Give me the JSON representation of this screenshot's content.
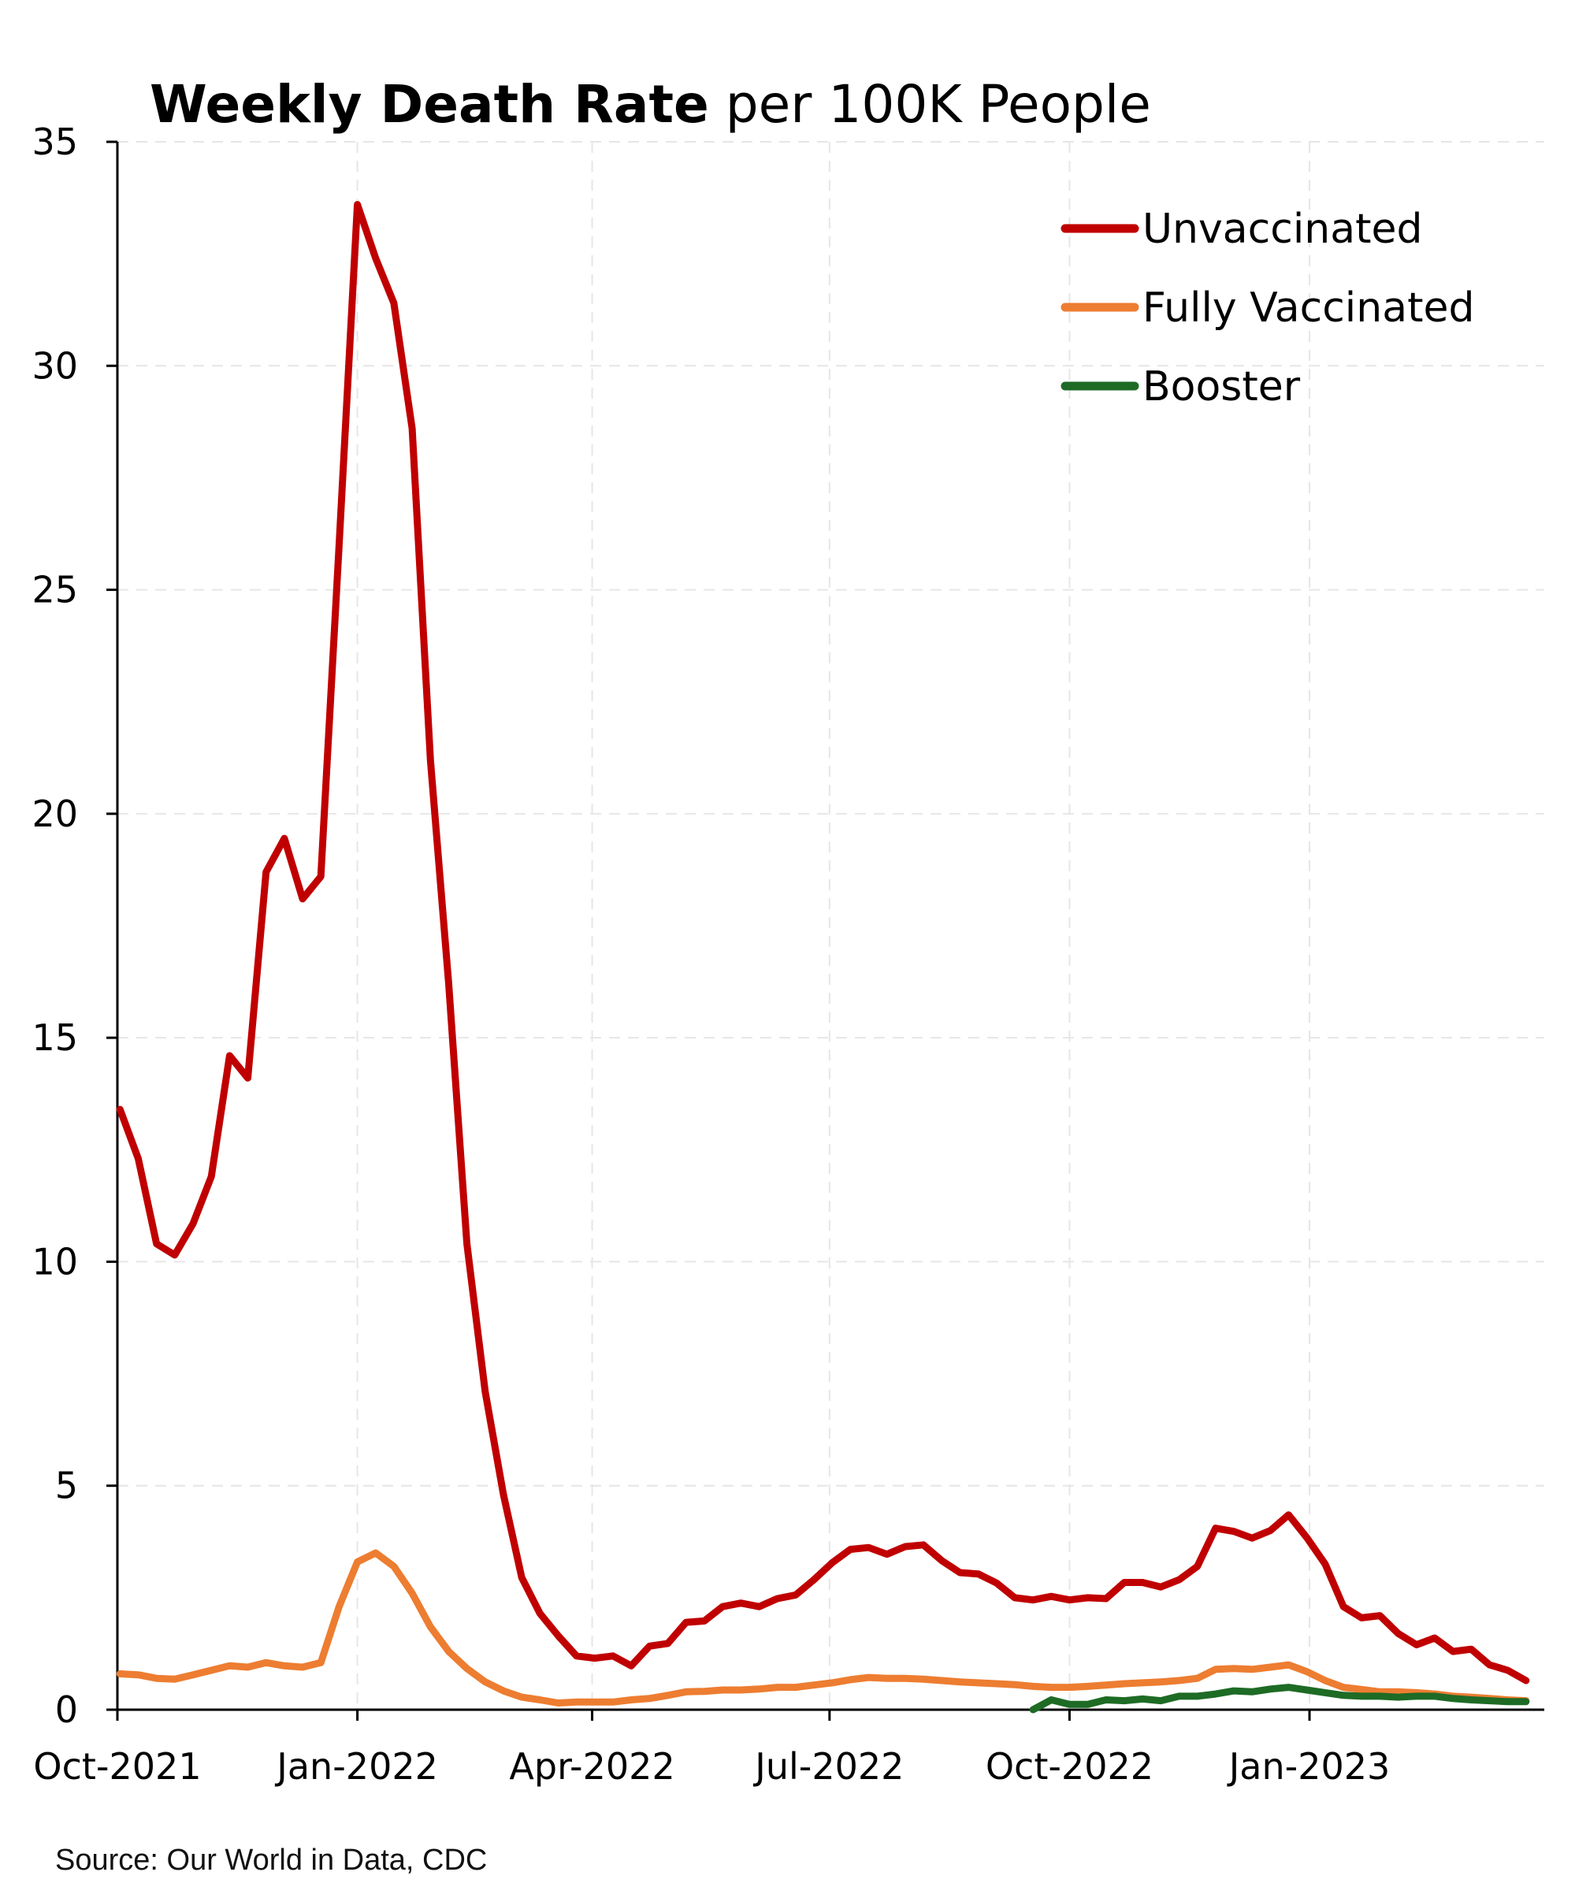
{
  "chart_data": {
    "type": "line",
    "title_bold": "Weekly Death Rate",
    "title_rest": " per 100K People",
    "xlabel": "",
    "ylabel": "",
    "ylim": [
      0,
      35
    ],
    "yticks": [
      0,
      5,
      10,
      15,
      20,
      25,
      30,
      35
    ],
    "x_start": "2021-10-02",
    "x_ticks": [
      {
        "date": "2021-10-01",
        "label": "Oct-2021"
      },
      {
        "date": "2022-01-01",
        "label": "Jan-2022"
      },
      {
        "date": "2022-04-01",
        "label": "Apr-2022"
      },
      {
        "date": "2022-07-01",
        "label": "Jul-2022"
      },
      {
        "date": "2022-10-01",
        "label": "Oct-2022"
      },
      {
        "date": "2023-01-01",
        "label": "Jan-2023"
      }
    ],
    "x_end": "2023-04-01",
    "grid": true,
    "legend_position": "top-right",
    "series": [
      {
        "name": "Unvaccinated",
        "color": "#c00000",
        "start_date": "2021-10-02",
        "values": [
          13.4,
          12.3,
          10.4,
          10.15,
          10.85,
          11.9,
          14.6,
          14.1,
          18.7,
          19.45,
          18.1,
          18.6,
          26.0,
          33.6,
          32.4,
          31.4,
          28.6,
          21.2,
          16.2,
          10.4,
          7.1,
          4.8,
          2.95,
          2.15,
          1.65,
          1.2,
          1.15,
          1.2,
          0.98,
          1.42,
          1.48,
          1.95,
          1.98,
          2.3,
          2.38,
          2.3,
          2.48,
          2.56,
          2.9,
          3.28,
          3.58,
          3.62,
          3.47,
          3.64,
          3.68,
          3.33,
          3.06,
          3.03,
          2.83,
          2.5,
          2.45,
          2.53,
          2.45,
          2.5,
          2.48,
          2.84,
          2.84,
          2.74,
          2.9,
          3.2,
          4.05,
          3.98,
          3.83,
          4.0,
          4.35,
          3.84,
          3.25,
          2.3,
          2.05,
          2.1,
          1.7,
          1.45,
          1.6,
          1.3,
          1.35,
          1.0,
          0.88,
          0.65
        ]
      },
      {
        "name": "Fully Vaccinated",
        "color": "#ed7d31",
        "start_date": "2021-10-02",
        "values": [
          0.8,
          0.78,
          0.7,
          0.68,
          0.78,
          0.88,
          0.98,
          0.95,
          1.05,
          0.98,
          0.95,
          1.05,
          2.3,
          3.3,
          3.5,
          3.2,
          2.6,
          1.85,
          1.3,
          0.92,
          0.62,
          0.42,
          0.28,
          0.22,
          0.15,
          0.17,
          0.17,
          0.17,
          0.22,
          0.25,
          0.32,
          0.4,
          0.41,
          0.44,
          0.44,
          0.46,
          0.5,
          0.5,
          0.55,
          0.6,
          0.67,
          0.72,
          0.7,
          0.7,
          0.68,
          0.65,
          0.62,
          0.6,
          0.58,
          0.56,
          0.52,
          0.5,
          0.5,
          0.52,
          0.55,
          0.58,
          0.6,
          0.62,
          0.65,
          0.7,
          0.9,
          0.92,
          0.9,
          0.95,
          1.0,
          0.85,
          0.65,
          0.5,
          0.45,
          0.4,
          0.4,
          0.38,
          0.35,
          0.3,
          0.28,
          0.25,
          0.22,
          0.2
        ]
      },
      {
        "name": "Booster",
        "color": "#1e6b25",
        "start_date": "2022-09-17",
        "values": [
          0.0,
          0.22,
          0.12,
          0.12,
          0.22,
          0.2,
          0.24,
          0.2,
          0.3,
          0.3,
          0.35,
          0.42,
          0.4,
          0.46,
          0.5,
          0.44,
          0.38,
          0.32,
          0.3,
          0.3,
          0.28,
          0.3,
          0.3,
          0.25,
          0.22,
          0.2,
          0.18,
          0.18
        ]
      }
    ],
    "source": "Source: Our World in Data, CDC"
  }
}
